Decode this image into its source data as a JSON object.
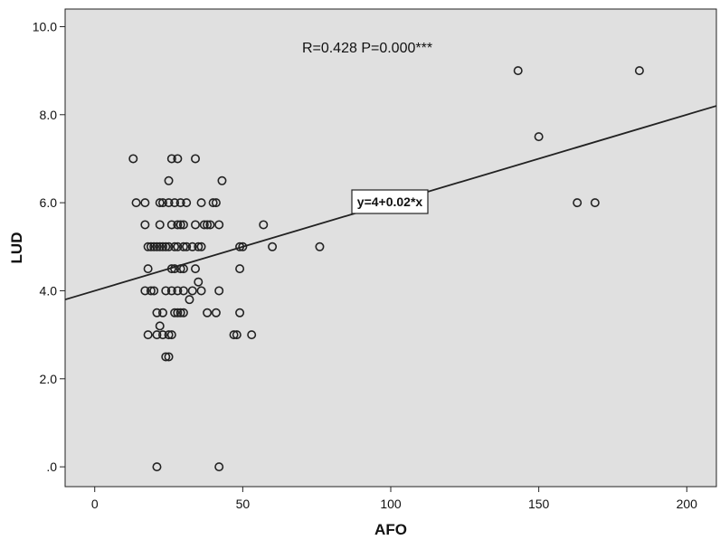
{
  "chart_data": {
    "type": "scatter",
    "title": "",
    "xlabel": "AFO",
    "ylabel": "LUD",
    "xlim": [
      -10,
      210
    ],
    "ylim": [
      -0.45,
      10.4
    ],
    "x_ticks": [
      0,
      50,
      100,
      150,
      200
    ],
    "x_tick_labels": [
      "0",
      "50",
      "100",
      "150",
      "200"
    ],
    "y_ticks": [
      0,
      2,
      4,
      6,
      8,
      10
    ],
    "y_tick_labels": [
      ".0",
      "2.0",
      "4.0",
      "6.0",
      "8.0",
      "10.0"
    ],
    "grid": false,
    "background_color": "#e0e0e0",
    "marker_color": "#222222",
    "annotation": "R=0.428  P=0.000***",
    "fit_line": {
      "intercept": 4,
      "slope": 0.02,
      "label": "y=4+0.02*x"
    },
    "points": [
      [
        13,
        7
      ],
      [
        14,
        6
      ],
      [
        17,
        5.5
      ],
      [
        17,
        6
      ],
      [
        18,
        5
      ],
      [
        18,
        4.5
      ],
      [
        17,
        4
      ],
      [
        18,
        3
      ],
      [
        19,
        4
      ],
      [
        19,
        5
      ],
      [
        20,
        5
      ],
      [
        20,
        4
      ],
      [
        21,
        3.5
      ],
      [
        21,
        5
      ],
      [
        21,
        3
      ],
      [
        22,
        6
      ],
      [
        22,
        5.5
      ],
      [
        22,
        5
      ],
      [
        22,
        3.2
      ],
      [
        23,
        6
      ],
      [
        23,
        5
      ],
      [
        23,
        3.5
      ],
      [
        23,
        3
      ],
      [
        24,
        5
      ],
      [
        24,
        4
      ],
      [
        24,
        2.5
      ],
      [
        25,
        6.5
      ],
      [
        25,
        6
      ],
      [
        25,
        5
      ],
      [
        25,
        3
      ],
      [
        25,
        2.5
      ],
      [
        26,
        7
      ],
      [
        26,
        5.5
      ],
      [
        26,
        4.5
      ],
      [
        26,
        4
      ],
      [
        26,
        3
      ],
      [
        27,
        6
      ],
      [
        27,
        5
      ],
      [
        27,
        4.5
      ],
      [
        27,
        3.5
      ],
      [
        28,
        7
      ],
      [
        28,
        5.5
      ],
      [
        28,
        5
      ],
      [
        28,
        4
      ],
      [
        28,
        3.5
      ],
      [
        29,
        6
      ],
      [
        29,
        5.5
      ],
      [
        29,
        4.5
      ],
      [
        29,
        3.5
      ],
      [
        30,
        5.5
      ],
      [
        30,
        5
      ],
      [
        30,
        4.5
      ],
      [
        30,
        4
      ],
      [
        30,
        3.5
      ],
      [
        31,
        6
      ],
      [
        31,
        5
      ],
      [
        32,
        3.8
      ],
      [
        33,
        5
      ],
      [
        33,
        4
      ],
      [
        34,
        7
      ],
      [
        34,
        5.5
      ],
      [
        34,
        4.5
      ],
      [
        35,
        4.2
      ],
      [
        35,
        5
      ],
      [
        36,
        6
      ],
      [
        36,
        5
      ],
      [
        36,
        4
      ],
      [
        37,
        5.5
      ],
      [
        38,
        5.5
      ],
      [
        38,
        3.5
      ],
      [
        39,
        5.5
      ],
      [
        40,
        6
      ],
      [
        41,
        3.5
      ],
      [
        41,
        6
      ],
      [
        42,
        5.5
      ],
      [
        42,
        4
      ],
      [
        43,
        6.5
      ],
      [
        47,
        3
      ],
      [
        48,
        3
      ],
      [
        49,
        4.5
      ],
      [
        49,
        3.5
      ],
      [
        49,
        5
      ],
      [
        50,
        5
      ],
      [
        53,
        3
      ],
      [
        57,
        5.5
      ],
      [
        60,
        5
      ],
      [
        76,
        5
      ],
      [
        21,
        0
      ],
      [
        42,
        0
      ],
      [
        143,
        9
      ],
      [
        150,
        7.5
      ],
      [
        163,
        6
      ],
      [
        169,
        6
      ],
      [
        184,
        9
      ]
    ]
  }
}
